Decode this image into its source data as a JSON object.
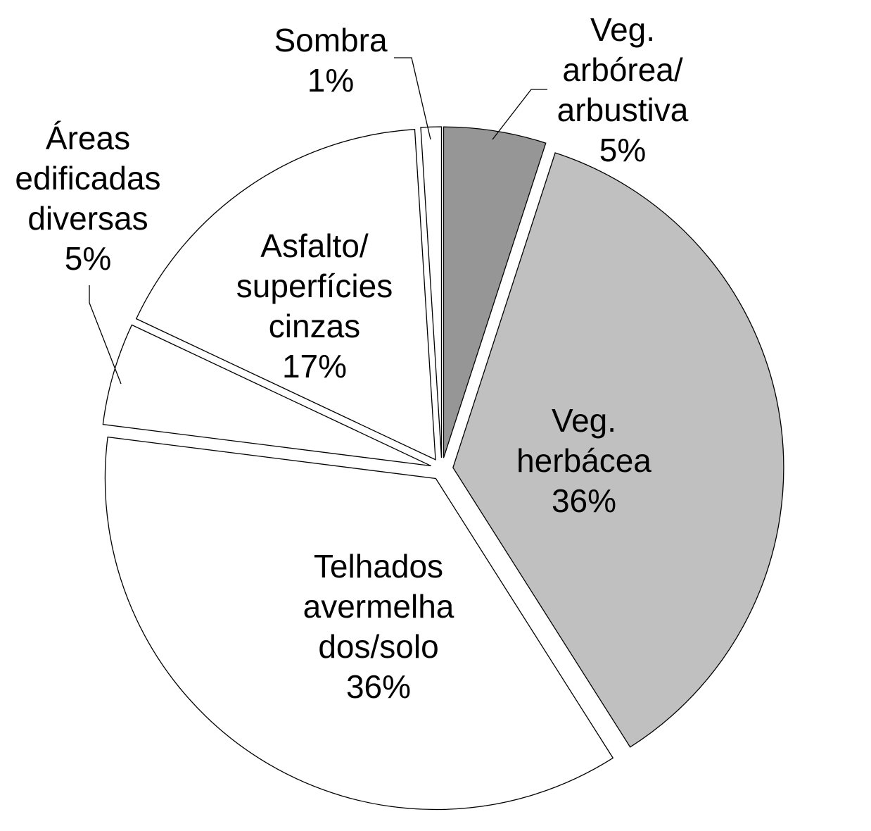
{
  "chart_data": {
    "type": "pie",
    "title": "",
    "start": "12 o'clock, clockwise",
    "slices": [
      {
        "label": [
          "Veg.",
          "arbórea/",
          "arbustiva",
          "5%"
        ],
        "value": 5,
        "color": "#969696",
        "label_position": "outside"
      },
      {
        "label": [
          "Veg.",
          "herbácea",
          "36%"
        ],
        "value": 36,
        "color": "#c0c0c0",
        "label_position": "inside"
      },
      {
        "label": [
          "Telhados",
          "avermelha",
          "dos/solo",
          "36%"
        ],
        "value": 36,
        "color": "#ffffff",
        "label_position": "inside"
      },
      {
        "label": [
          "Áreas",
          "edificadas",
          "diversas",
          "5%"
        ],
        "value": 5,
        "color": "#ffffff",
        "label_position": "outside"
      },
      {
        "label": [
          "Asfalto/",
          "superfícies",
          "cinzas",
          "17%"
        ],
        "value": 17,
        "color": "#ffffff",
        "label_position": "inside"
      },
      {
        "label": [
          "Sombra",
          "1%"
        ],
        "value": 1,
        "color": "#ffffff",
        "label_position": "outside"
      }
    ]
  }
}
